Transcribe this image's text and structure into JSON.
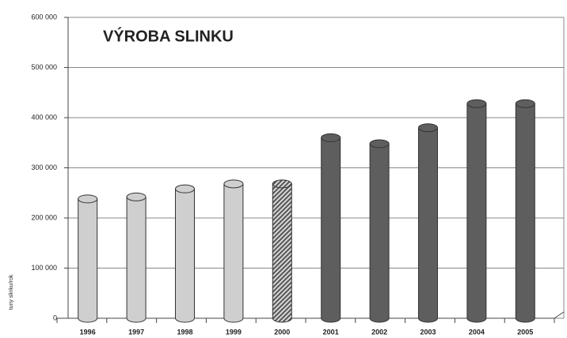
{
  "chart_data": {
    "type": "bar",
    "title": "VÝROBA SLINKU",
    "ylabel": "tuny slinku/rok",
    "categories": [
      "1996",
      "1997",
      "1998",
      "1999",
      "2000",
      "2001",
      "2002",
      "2003",
      "2004",
      "2005"
    ],
    "values": [
      238000,
      242000,
      258000,
      268000,
      268000,
      360000,
      348000,
      380000,
      428000,
      428000
    ],
    "colors": [
      "#cfcfcf",
      "#cfcfcf",
      "#cfcfcf",
      "#cfcfcf",
      "#6e6e6e",
      "#5e5e5e",
      "#5e5e5e",
      "#5e5e5e",
      "#5e5e5e",
      "#5e5e5e"
    ],
    "hatch": [
      false,
      false,
      false,
      false,
      true,
      false,
      false,
      false,
      false,
      false
    ],
    "ylim": [
      0,
      600000
    ],
    "yticks": [
      {
        "value": 0,
        "label": "0"
      },
      {
        "value": 100000,
        "label": "100 000"
      },
      {
        "value": 200000,
        "label": "200 000"
      },
      {
        "value": 300000,
        "label": "300 000"
      },
      {
        "value": 400000,
        "label": "400 000"
      },
      {
        "value": 500000,
        "label": "500 000"
      },
      {
        "value": 600000,
        "label": "600 000"
      }
    ],
    "grid": true
  }
}
